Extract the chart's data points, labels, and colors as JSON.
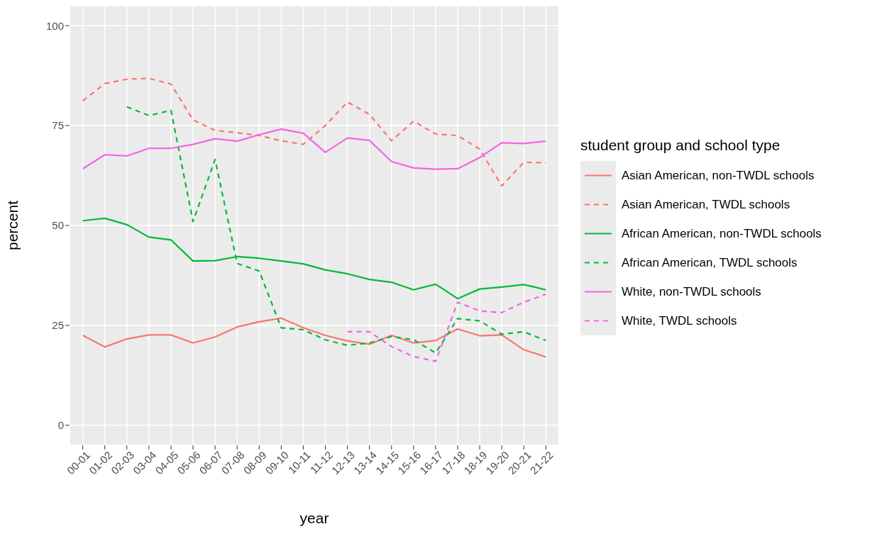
{
  "chart_data": {
    "type": "line",
    "xlabel": "year",
    "ylabel": "percent",
    "legend_title": "student group and school type",
    "legend": "right",
    "grid": true,
    "categories": [
      "00-01",
      "01-02",
      "02-03",
      "03-04",
      "04-05",
      "05-06",
      "06-07",
      "07-08",
      "08-09",
      "09-10",
      "10-11",
      "11-12",
      "12-13",
      "13-14",
      "14-15",
      "15-16",
      "16-17",
      "17-18",
      "18-19",
      "19-20",
      "20-21",
      "21-22"
    ],
    "ylim": [
      -5,
      105
    ],
    "yticks": [
      0,
      25,
      50,
      75,
      100
    ],
    "series": [
      {
        "name": "Asian American, non-TWDL schools",
        "color": "#f8766d",
        "line_style": "solid",
        "values": [
          22.5,
          19.6,
          21.6,
          22.6,
          22.6,
          20.6,
          22.1,
          24.6,
          25.9,
          26.8,
          24.4,
          22.5,
          21.1,
          20.3,
          22.5,
          20.6,
          21.2,
          24.1,
          22.4,
          22.6,
          18.9,
          17.1
        ]
      },
      {
        "name": "Asian American, TWDL schools",
        "color": "#f8766d",
        "line_style": "dashed",
        "values": [
          81.2,
          85.5,
          86.6,
          86.8,
          85.4,
          76.4,
          73.8,
          73.2,
          72.5,
          71.2,
          70.3,
          75,
          80.9,
          77.8,
          71.2,
          76.1,
          72.9,
          72.5,
          69.1,
          59.9,
          65.8,
          65.7
        ]
      },
      {
        "name": "African American, non-TWDL schools",
        "color": "#00ba38",
        "line_style": "solid",
        "values": [
          51.2,
          51.8,
          50.2,
          47.1,
          46.4,
          41.1,
          41.2,
          42.2,
          41.8,
          41.1,
          40.4,
          38.9,
          37.9,
          36.5,
          35.8,
          33.9,
          35.3,
          31.7,
          34.1,
          34.6,
          35.2,
          33.9
        ]
      },
      {
        "name": "African American, TWDL schools",
        "color": "#00ba38",
        "line_style": "dashed",
        "values": [
          null,
          null,
          79.7,
          77.5,
          78.8,
          51.0,
          66.5,
          40.5,
          38.6,
          24.4,
          23.9,
          21.4,
          20.0,
          20.6,
          22.2,
          21.4,
          18.1,
          26.7,
          26.1,
          22.8,
          23.4,
          21.2
        ]
      },
      {
        "name": "White, non-TWDL schools",
        "color": "#f564e3",
        "line_style": "solid",
        "values": [
          64.2,
          67.7,
          67.4,
          69.3,
          69.3,
          70.3,
          71.7,
          71.1,
          72.7,
          74.1,
          73.1,
          68.3,
          71.9,
          71.3,
          66.0,
          64.4,
          64.1,
          64.2,
          67.0,
          70.7,
          70.5,
          71.1
        ]
      },
      {
        "name": "White, TWDL schools",
        "color": "#f564e3",
        "line_style": "dashed",
        "values": [
          null,
          null,
          null,
          null,
          null,
          null,
          null,
          null,
          null,
          null,
          null,
          null,
          23.4,
          23.4,
          19.7,
          17.2,
          16.0,
          30.8,
          28.6,
          28.2,
          30.8,
          32.8
        ]
      }
    ]
  }
}
